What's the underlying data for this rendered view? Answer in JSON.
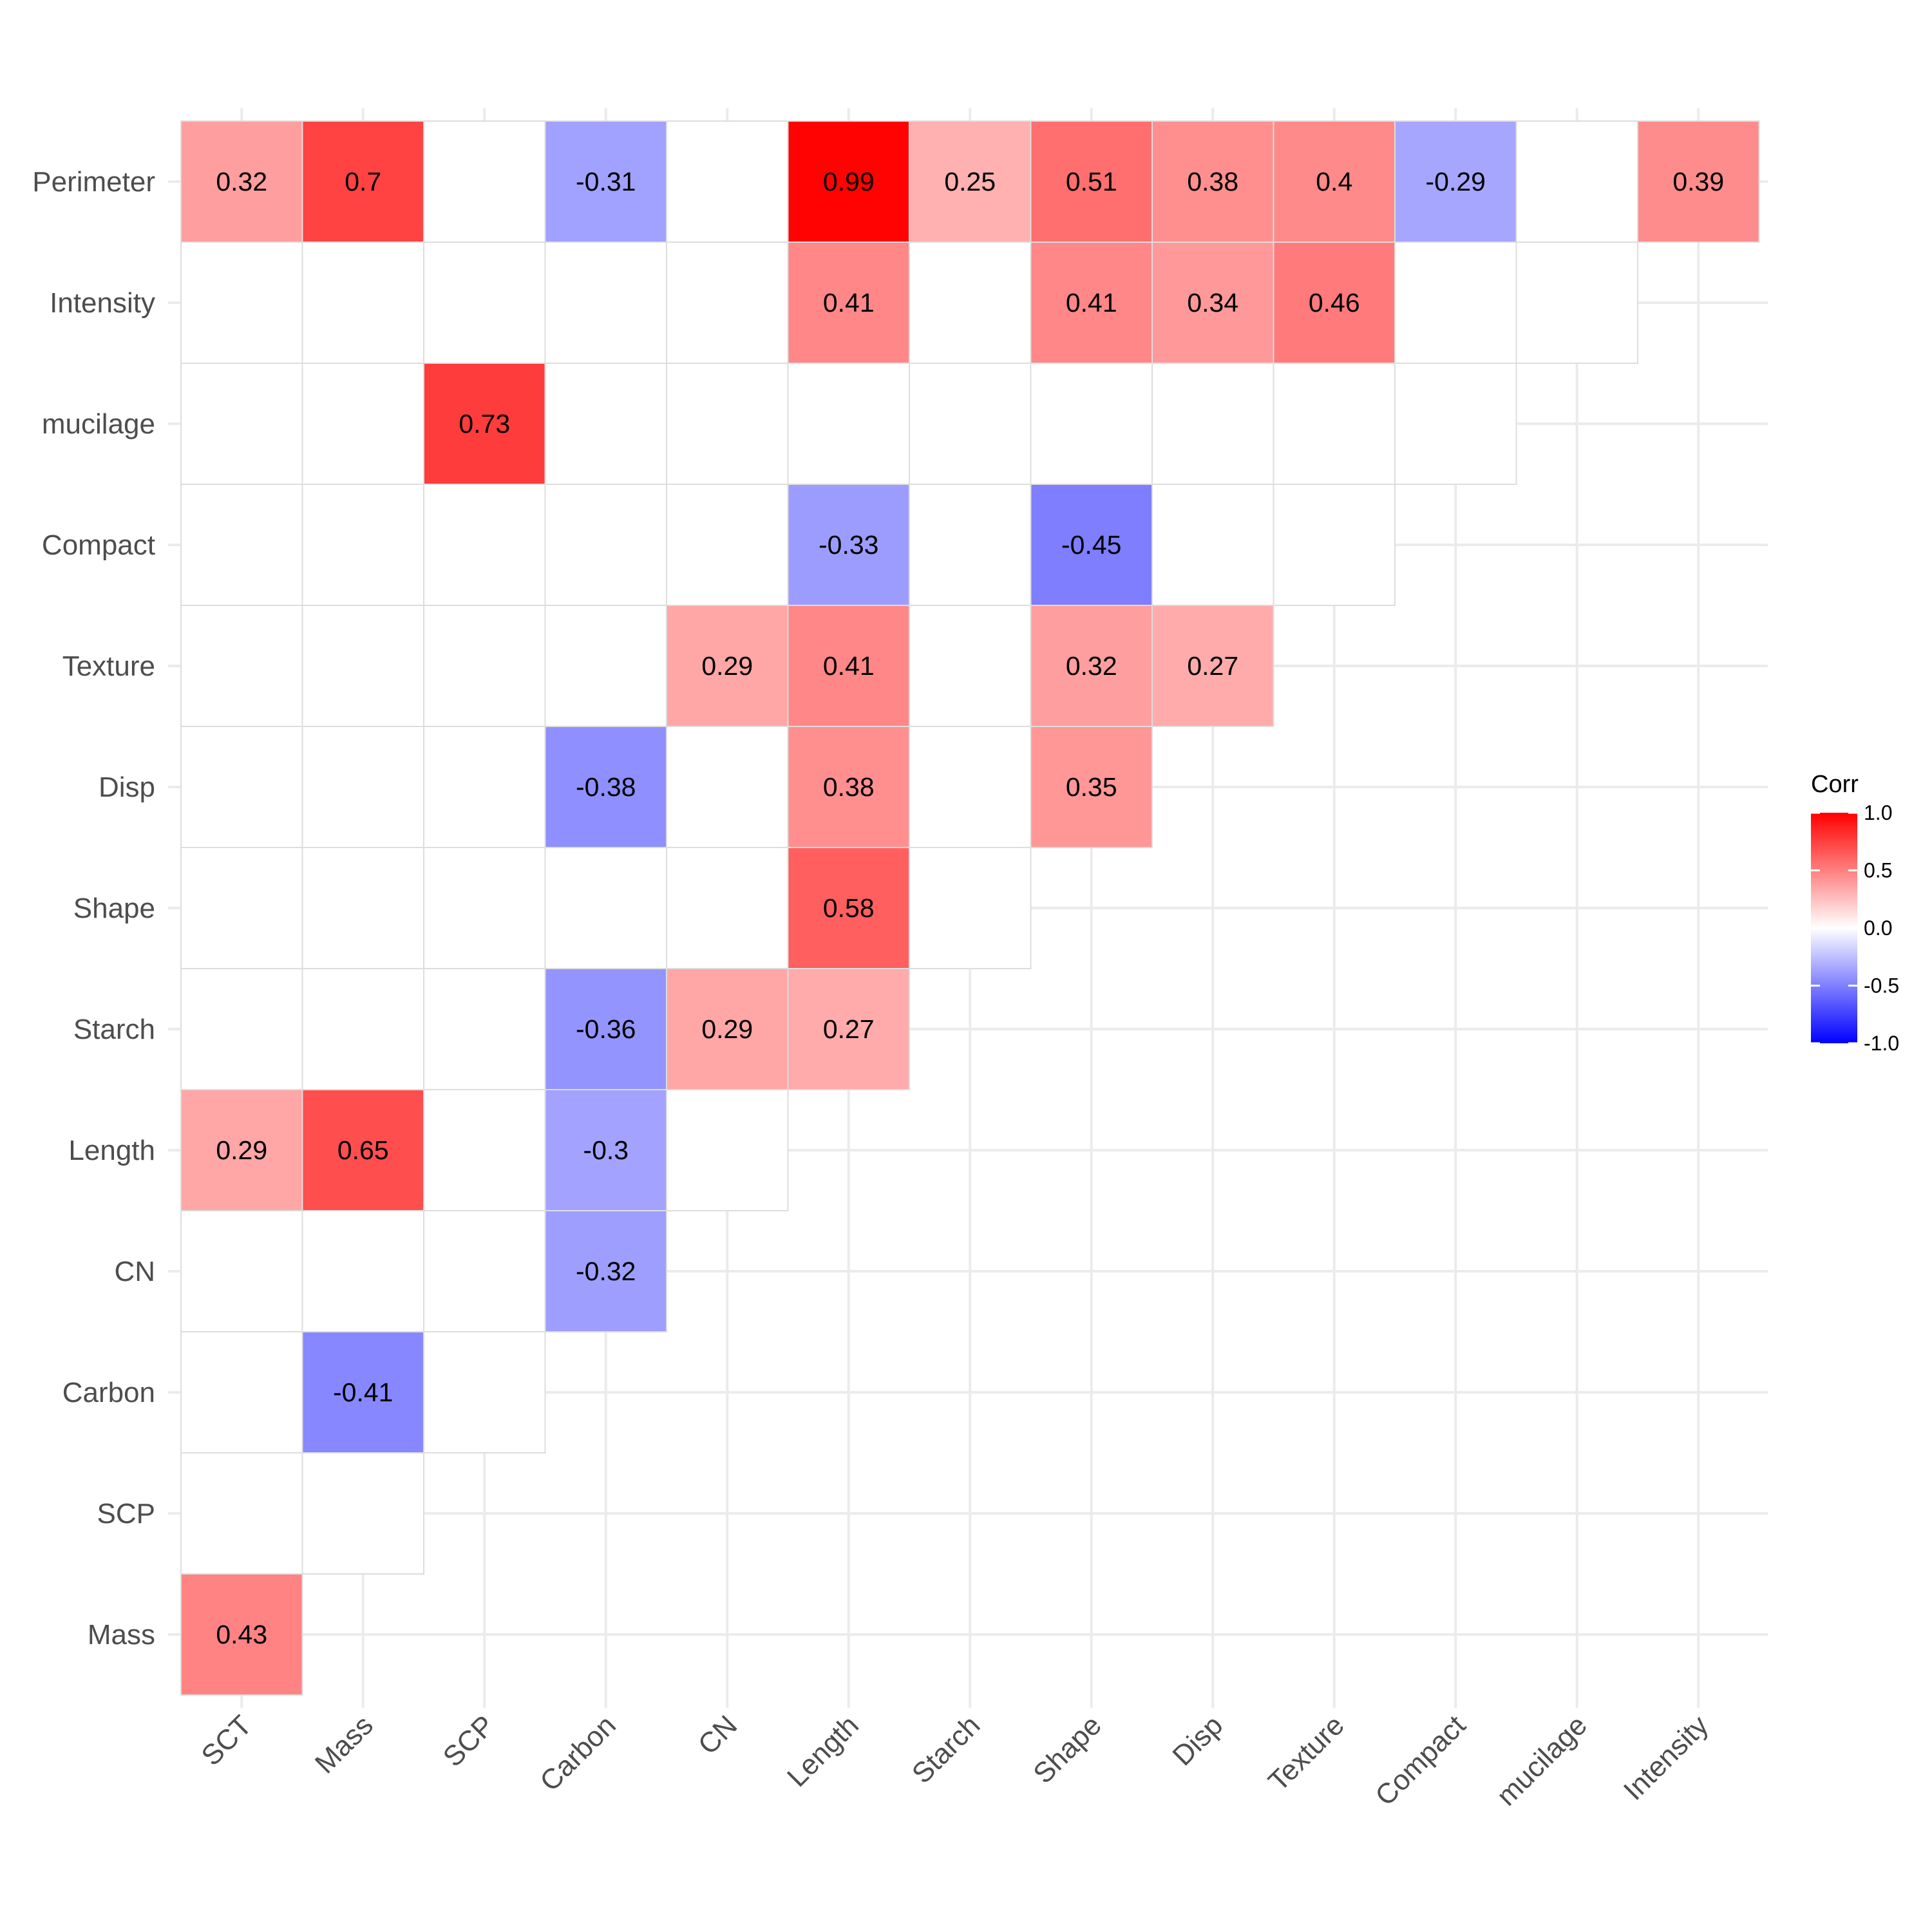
{
  "chart_data": {
    "type": "heatmap",
    "x_categories": [
      "SCT",
      "Mass",
      "SCP",
      "Carbon",
      "CN",
      "Length",
      "Starch",
      "Shape",
      "Disp",
      "Texture",
      "Compact",
      "mucilage",
      "Intensity"
    ],
    "y_categories": [
      "Mass",
      "SCP",
      "Carbon",
      "CN",
      "Length",
      "Starch",
      "Shape",
      "Disp",
      "Texture",
      "Compact",
      "mucilage",
      "Intensity",
      "Perimeter"
    ],
    "cells": [
      {
        "y": "Mass",
        "x": "SCT",
        "value": 0.43,
        "label": "0.43"
      },
      {
        "y": "SCP",
        "x": "SCT",
        "value": null,
        "label": ""
      },
      {
        "y": "SCP",
        "x": "Mass",
        "value": null,
        "label": ""
      },
      {
        "y": "Carbon",
        "x": "SCT",
        "value": null,
        "label": ""
      },
      {
        "y": "Carbon",
        "x": "Mass",
        "value": -0.41,
        "label": "-0.41"
      },
      {
        "y": "Carbon",
        "x": "SCP",
        "value": null,
        "label": ""
      },
      {
        "y": "CN",
        "x": "SCT",
        "value": null,
        "label": ""
      },
      {
        "y": "CN",
        "x": "Mass",
        "value": null,
        "label": ""
      },
      {
        "y": "CN",
        "x": "SCP",
        "value": null,
        "label": ""
      },
      {
        "y": "CN",
        "x": "Carbon",
        "value": -0.32,
        "label": "-0.32"
      },
      {
        "y": "Length",
        "x": "SCT",
        "value": 0.29,
        "label": "0.29"
      },
      {
        "y": "Length",
        "x": "Mass",
        "value": 0.65,
        "label": "0.65"
      },
      {
        "y": "Length",
        "x": "SCP",
        "value": null,
        "label": ""
      },
      {
        "y": "Length",
        "x": "Carbon",
        "value": -0.3,
        "label": "-0.3"
      },
      {
        "y": "Length",
        "x": "CN",
        "value": null,
        "label": ""
      },
      {
        "y": "Starch",
        "x": "SCT",
        "value": null,
        "label": ""
      },
      {
        "y": "Starch",
        "x": "Mass",
        "value": null,
        "label": ""
      },
      {
        "y": "Starch",
        "x": "SCP",
        "value": null,
        "label": ""
      },
      {
        "y": "Starch",
        "x": "Carbon",
        "value": -0.36,
        "label": "-0.36"
      },
      {
        "y": "Starch",
        "x": "CN",
        "value": 0.29,
        "label": "0.29"
      },
      {
        "y": "Starch",
        "x": "Length",
        "value": 0.27,
        "label": "0.27"
      },
      {
        "y": "Shape",
        "x": "SCT",
        "value": null,
        "label": ""
      },
      {
        "y": "Shape",
        "x": "Mass",
        "value": null,
        "label": ""
      },
      {
        "y": "Shape",
        "x": "SCP",
        "value": null,
        "label": ""
      },
      {
        "y": "Shape",
        "x": "Carbon",
        "value": null,
        "label": ""
      },
      {
        "y": "Shape",
        "x": "CN",
        "value": null,
        "label": ""
      },
      {
        "y": "Shape",
        "x": "Length",
        "value": 0.58,
        "label": "0.58"
      },
      {
        "y": "Shape",
        "x": "Starch",
        "value": null,
        "label": ""
      },
      {
        "y": "Disp",
        "x": "SCT",
        "value": null,
        "label": ""
      },
      {
        "y": "Disp",
        "x": "Mass",
        "value": null,
        "label": ""
      },
      {
        "y": "Disp",
        "x": "SCP",
        "value": null,
        "label": ""
      },
      {
        "y": "Disp",
        "x": "Carbon",
        "value": -0.38,
        "label": "-0.38"
      },
      {
        "y": "Disp",
        "x": "CN",
        "value": null,
        "label": ""
      },
      {
        "y": "Disp",
        "x": "Length",
        "value": 0.38,
        "label": "0.38"
      },
      {
        "y": "Disp",
        "x": "Starch",
        "value": null,
        "label": ""
      },
      {
        "y": "Disp",
        "x": "Shape",
        "value": 0.35,
        "label": "0.35"
      },
      {
        "y": "Texture",
        "x": "SCT",
        "value": null,
        "label": ""
      },
      {
        "y": "Texture",
        "x": "Mass",
        "value": null,
        "label": ""
      },
      {
        "y": "Texture",
        "x": "SCP",
        "value": null,
        "label": ""
      },
      {
        "y": "Texture",
        "x": "Carbon",
        "value": null,
        "label": ""
      },
      {
        "y": "Texture",
        "x": "CN",
        "value": 0.29,
        "label": "0.29"
      },
      {
        "y": "Texture",
        "x": "Length",
        "value": 0.41,
        "label": "0.41"
      },
      {
        "y": "Texture",
        "x": "Starch",
        "value": null,
        "label": ""
      },
      {
        "y": "Texture",
        "x": "Shape",
        "value": 0.32,
        "label": "0.32"
      },
      {
        "y": "Texture",
        "x": "Disp",
        "value": 0.27,
        "label": "0.27"
      },
      {
        "y": "Compact",
        "x": "SCT",
        "value": null,
        "label": ""
      },
      {
        "y": "Compact",
        "x": "Mass",
        "value": null,
        "label": ""
      },
      {
        "y": "Compact",
        "x": "SCP",
        "value": null,
        "label": ""
      },
      {
        "y": "Compact",
        "x": "Carbon",
        "value": null,
        "label": ""
      },
      {
        "y": "Compact",
        "x": "CN",
        "value": null,
        "label": ""
      },
      {
        "y": "Compact",
        "x": "Length",
        "value": -0.33,
        "label": "-0.33"
      },
      {
        "y": "Compact",
        "x": "Starch",
        "value": null,
        "label": ""
      },
      {
        "y": "Compact",
        "x": "Shape",
        "value": -0.45,
        "label": "-0.45"
      },
      {
        "y": "Compact",
        "x": "Disp",
        "value": null,
        "label": ""
      },
      {
        "y": "Compact",
        "x": "Texture",
        "value": null,
        "label": ""
      },
      {
        "y": "mucilage",
        "x": "SCT",
        "value": null,
        "label": ""
      },
      {
        "y": "mucilage",
        "x": "Mass",
        "value": null,
        "label": ""
      },
      {
        "y": "mucilage",
        "x": "SCP",
        "value": 0.73,
        "label": "0.73"
      },
      {
        "y": "mucilage",
        "x": "Carbon",
        "value": null,
        "label": ""
      },
      {
        "y": "mucilage",
        "x": "CN",
        "value": null,
        "label": ""
      },
      {
        "y": "mucilage",
        "x": "Length",
        "value": null,
        "label": ""
      },
      {
        "y": "mucilage",
        "x": "Starch",
        "value": null,
        "label": ""
      },
      {
        "y": "mucilage",
        "x": "Shape",
        "value": null,
        "label": ""
      },
      {
        "y": "mucilage",
        "x": "Disp",
        "value": null,
        "label": ""
      },
      {
        "y": "mucilage",
        "x": "Texture",
        "value": null,
        "label": ""
      },
      {
        "y": "mucilage",
        "x": "Compact",
        "value": null,
        "label": ""
      },
      {
        "y": "Intensity",
        "x": "SCT",
        "value": null,
        "label": ""
      },
      {
        "y": "Intensity",
        "x": "Mass",
        "value": null,
        "label": ""
      },
      {
        "y": "Intensity",
        "x": "SCP",
        "value": null,
        "label": ""
      },
      {
        "y": "Intensity",
        "x": "Carbon",
        "value": null,
        "label": ""
      },
      {
        "y": "Intensity",
        "x": "CN",
        "value": null,
        "label": ""
      },
      {
        "y": "Intensity",
        "x": "Length",
        "value": 0.41,
        "label": "0.41"
      },
      {
        "y": "Intensity",
        "x": "Starch",
        "value": null,
        "label": ""
      },
      {
        "y": "Intensity",
        "x": "Shape",
        "value": 0.41,
        "label": "0.41"
      },
      {
        "y": "Intensity",
        "x": "Disp",
        "value": 0.34,
        "label": "0.34"
      },
      {
        "y": "Intensity",
        "x": "Texture",
        "value": 0.46,
        "label": "0.46"
      },
      {
        "y": "Intensity",
        "x": "Compact",
        "value": null,
        "label": ""
      },
      {
        "y": "Intensity",
        "x": "mucilage",
        "value": null,
        "label": ""
      },
      {
        "y": "Perimeter",
        "x": "SCT",
        "value": 0.32,
        "label": "0.32"
      },
      {
        "y": "Perimeter",
        "x": "Mass",
        "value": 0.7,
        "label": "0.7"
      },
      {
        "y": "Perimeter",
        "x": "SCP",
        "value": null,
        "label": ""
      },
      {
        "y": "Perimeter",
        "x": "Carbon",
        "value": -0.31,
        "label": "-0.31"
      },
      {
        "y": "Perimeter",
        "x": "CN",
        "value": null,
        "label": ""
      },
      {
        "y": "Perimeter",
        "x": "Length",
        "value": 0.99,
        "label": "0.99"
      },
      {
        "y": "Perimeter",
        "x": "Starch",
        "value": 0.25,
        "label": "0.25"
      },
      {
        "y": "Perimeter",
        "x": "Shape",
        "value": 0.51,
        "label": "0.51"
      },
      {
        "y": "Perimeter",
        "x": "Disp",
        "value": 0.38,
        "label": "0.38"
      },
      {
        "y": "Perimeter",
        "x": "Texture",
        "value": 0.4,
        "label": "0.4"
      },
      {
        "y": "Perimeter",
        "x": "Compact",
        "value": -0.29,
        "label": "-0.29"
      },
      {
        "y": "Perimeter",
        "x": "mucilage",
        "value": null,
        "label": ""
      },
      {
        "y": "Perimeter",
        "x": "Intensity",
        "value": 0.39,
        "label": "0.39"
      }
    ],
    "title": "",
    "xlabel": "",
    "ylabel": "",
    "value_range": [
      -1,
      1
    ],
    "grid": true,
    "legend": {
      "title": "Corr",
      "position": "right",
      "ticks": [
        1.0,
        0.5,
        0.0,
        -0.5,
        -1.0
      ],
      "tick_labels": [
        "1.0",
        "0.5",
        "0.0",
        "-0.5",
        "-1.0"
      ]
    },
    "colors": {
      "low": "#0000FF",
      "mid": "#FFFFFF",
      "high": "#FF0000",
      "gridline": "#EBEBEB",
      "tile_border": "#DDDDDD",
      "axis_text": "#4D4D4D",
      "label_text": "#000000"
    }
  }
}
